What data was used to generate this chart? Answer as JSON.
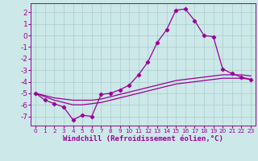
{
  "xlabel": "Windchill (Refroidissement éolien,°C)",
  "bg_color": "#cce8e8",
  "line_color": "#990099",
  "grid_color": "#aacccc",
  "xlim": [
    -0.5,
    23.5
  ],
  "ylim": [
    -7.8,
    2.8
  ],
  "xticks": [
    0,
    1,
    2,
    3,
    4,
    5,
    6,
    7,
    8,
    9,
    10,
    11,
    12,
    13,
    14,
    15,
    16,
    17,
    18,
    19,
    20,
    21,
    22,
    23
  ],
  "yticks": [
    -7,
    -6,
    -5,
    -4,
    -3,
    -2,
    -1,
    0,
    1,
    2
  ],
  "band_upper_x": [
    0,
    1,
    2,
    3,
    4,
    5,
    6,
    7,
    8,
    9,
    10,
    11,
    12,
    13,
    14,
    15,
    16,
    17,
    18,
    19,
    20,
    21,
    22,
    23
  ],
  "band_upper_y": [
    -5.0,
    -5.2,
    -5.4,
    -5.5,
    -5.6,
    -5.6,
    -5.6,
    -5.5,
    -5.3,
    -5.1,
    -4.9,
    -4.7,
    -4.5,
    -4.3,
    -4.1,
    -3.9,
    -3.8,
    -3.7,
    -3.6,
    -3.5,
    -3.4,
    -3.4,
    -3.4,
    -3.5
  ],
  "band_lower_x": [
    0,
    1,
    2,
    3,
    4,
    5,
    6,
    7,
    8,
    9,
    10,
    11,
    12,
    13,
    14,
    15,
    16,
    17,
    18,
    19,
    20,
    21,
    22,
    23
  ],
  "band_lower_y": [
    -5.0,
    -5.3,
    -5.6,
    -5.8,
    -6.0,
    -6.0,
    -5.9,
    -5.8,
    -5.6,
    -5.4,
    -5.2,
    -5.0,
    -4.8,
    -4.6,
    -4.4,
    -4.2,
    -4.1,
    -4.0,
    -3.9,
    -3.8,
    -3.7,
    -3.7,
    -3.7,
    -3.8
  ],
  "main_x": [
    0,
    1,
    2,
    3,
    4,
    5,
    6,
    7,
    8,
    9,
    10,
    11,
    12,
    13,
    14,
    15,
    16,
    17,
    18,
    19,
    20,
    21,
    22,
    23
  ],
  "main_y": [
    -5.0,
    -5.6,
    -5.9,
    -6.2,
    -7.3,
    -6.9,
    -7.0,
    -5.1,
    -5.0,
    -4.7,
    -4.3,
    -3.4,
    -2.3,
    -0.6,
    0.5,
    2.2,
    2.3,
    1.3,
    0.0,
    -0.1,
    -2.9,
    -3.3,
    -3.6,
    -3.8
  ],
  "marker": "D",
  "markersize": 2.2,
  "linewidth": 0.9,
  "xlabel_fontsize": 6.5,
  "xtick_fontsize": 5.2,
  "ytick_fontsize": 6.5
}
